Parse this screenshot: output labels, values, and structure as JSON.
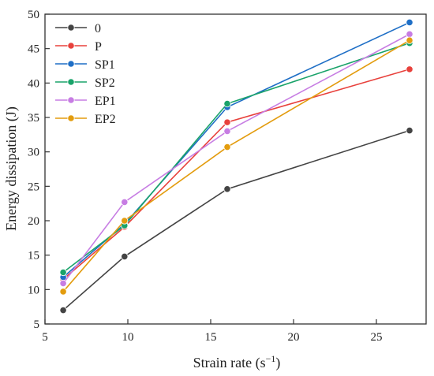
{
  "chart_data": {
    "type": "line",
    "xlabel_main": "Strain rate (s",
    "xlabel_sup": "−1",
    "xlabel_tail": ")",
    "ylabel": "Energy dissipation (J)",
    "xlim": [
      5,
      28
    ],
    "ylim": [
      5,
      50
    ],
    "xticks": [
      "5",
      "10",
      "15",
      "20",
      "25"
    ],
    "yticks": [
      "5",
      "10",
      "15",
      "20",
      "25",
      "30",
      "35",
      "40",
      "45",
      "50"
    ],
    "x": [
      6.1,
      9.8,
      16.0,
      27.0
    ],
    "legend_position": "top-left",
    "grid": false,
    "series": [
      {
        "name": "0",
        "color": "#444444",
        "values": [
          7.0,
          14.8,
          24.6,
          33.1
        ]
      },
      {
        "name": "P",
        "color": "#e8413c",
        "values": [
          11.5,
          19.1,
          34.3,
          42.0
        ]
      },
      {
        "name": "SP1",
        "color": "#1f6fc6",
        "values": [
          11.8,
          19.5,
          36.5,
          48.8
        ]
      },
      {
        "name": "SP2",
        "color": "#1aa36a",
        "values": [
          12.5,
          19.3,
          37.0,
          45.8
        ]
      },
      {
        "name": "EP1",
        "color": "#c77de3",
        "values": [
          10.9,
          22.7,
          33.0,
          47.1
        ]
      },
      {
        "name": "EP2",
        "color": "#e39c0e",
        "values": [
          9.7,
          20.0,
          30.7,
          46.2
        ]
      }
    ]
  }
}
